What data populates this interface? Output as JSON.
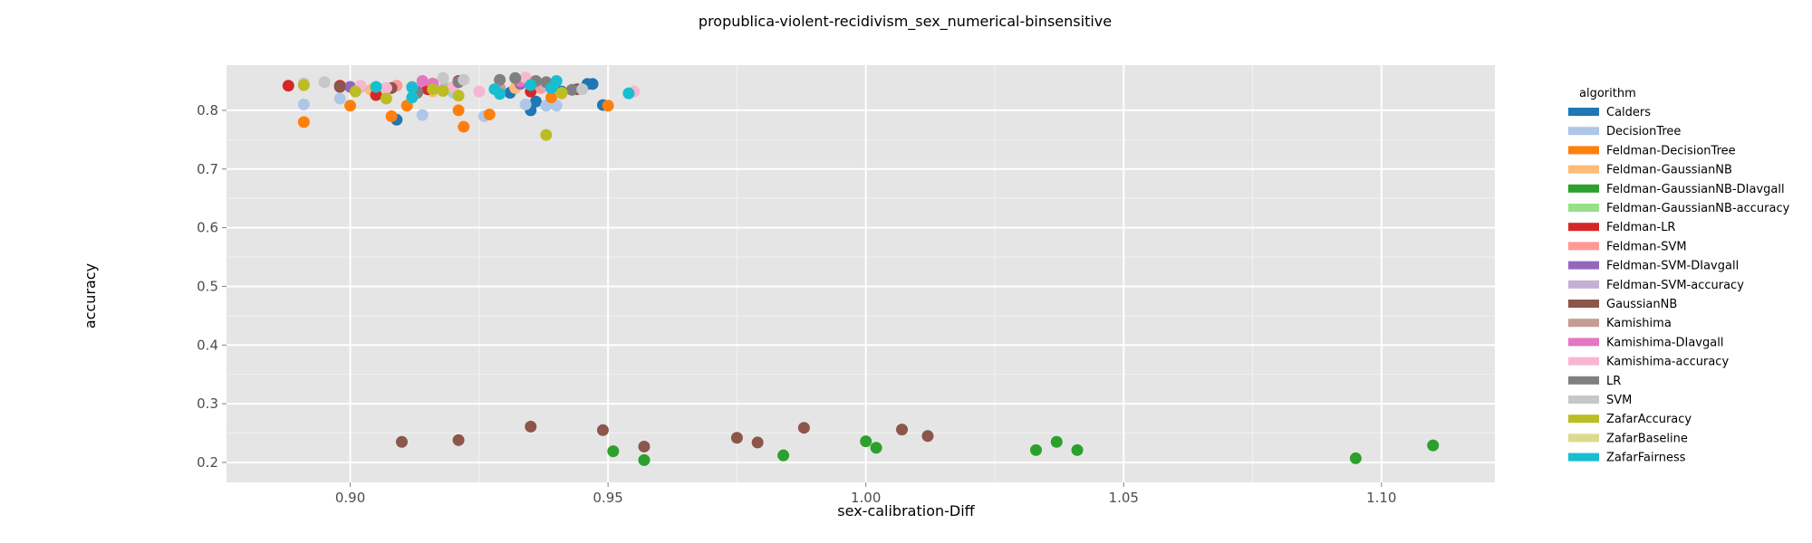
{
  "chart_data": {
    "type": "scatter",
    "title": "propublica-violent-recidivism_sex_numerical-binsensitive",
    "xlabel": "sex-calibration-Diff",
    "ylabel": "accuracy",
    "xlim": [
      0.876,
      1.122
    ],
    "ylim": [
      0.166,
      0.877
    ],
    "x_ticks": [
      0.9,
      0.95,
      1.0,
      1.05,
      1.1
    ],
    "x_tick_labels": [
      "0.90",
      "0.95",
      "1.00",
      "1.05",
      "1.10"
    ],
    "y_ticks": [
      0.2,
      0.3,
      0.4,
      0.5,
      0.6,
      0.7,
      0.8
    ],
    "y_tick_labels": [
      "0.2",
      "0.3",
      "0.4",
      "0.5",
      "0.6",
      "0.7",
      "0.8"
    ],
    "grid": true,
    "legend_title": "algorithm",
    "legend_position": "right",
    "series": [
      {
        "name": "Calders",
        "color": "#1f77b4",
        "points": [
          [
            0.909,
            0.784
          ],
          [
            0.931,
            0.83
          ],
          [
            0.935,
            0.8
          ],
          [
            0.936,
            0.815
          ],
          [
            0.946,
            0.845
          ],
          [
            0.947,
            0.845
          ],
          [
            0.949,
            0.809
          ],
          [
            0.941,
            0.832
          ]
        ]
      },
      {
        "name": "DecisionTree",
        "color": "#aec7e8",
        "points": [
          [
            0.891,
            0.81
          ],
          [
            0.898,
            0.82
          ],
          [
            0.914,
            0.792
          ],
          [
            0.926,
            0.79
          ],
          [
            0.934,
            0.81
          ],
          [
            0.938,
            0.808
          ],
          [
            0.94,
            0.808
          ],
          [
            0.92,
            0.83
          ]
        ]
      },
      {
        "name": "Feldman-DecisionTree",
        "color": "#ff7f0e",
        "points": [
          [
            0.891,
            0.78
          ],
          [
            0.9,
            0.808
          ],
          [
            0.908,
            0.79
          ],
          [
            0.911,
            0.808
          ],
          [
            0.921,
            0.8
          ],
          [
            0.922,
            0.772
          ],
          [
            0.927,
            0.793
          ],
          [
            0.939,
            0.822
          ],
          [
            0.95,
            0.808
          ]
        ]
      },
      {
        "name": "Feldman-GaussianNB",
        "color": "#ffbb78",
        "points": [
          [
            0.904,
            0.835
          ],
          [
            0.916,
            0.832
          ],
          [
            0.941,
            0.828
          ],
          [
            0.932,
            0.838
          ]
        ]
      },
      {
        "name": "Feldman-GaussianNB-DIavgall",
        "color": "#2ca02c",
        "points": [
          [
            0.951,
            0.219
          ],
          [
            0.957,
            0.204
          ],
          [
            0.984,
            0.212
          ],
          [
            1.0,
            0.236
          ],
          [
            1.002,
            0.225
          ],
          [
            1.033,
            0.221
          ],
          [
            1.037,
            0.235
          ],
          [
            1.041,
            0.221
          ],
          [
            1.095,
            0.207
          ],
          [
            1.11,
            0.229
          ]
        ]
      },
      {
        "name": "Feldman-GaussianNB-accuracy",
        "color": "#98df8a",
        "points": [
          [
            0.906,
            0.836
          ],
          [
            0.919,
            0.838
          ],
          [
            0.939,
            0.84
          ]
        ]
      },
      {
        "name": "Feldman-LR",
        "color": "#d62728",
        "points": [
          [
            0.888,
            0.842
          ],
          [
            0.898,
            0.842
          ],
          [
            0.905,
            0.826
          ],
          [
            0.915,
            0.836
          ],
          [
            0.921,
            0.85
          ],
          [
            0.935,
            0.832
          ]
        ]
      },
      {
        "name": "Feldman-SVM",
        "color": "#ff9896",
        "points": [
          [
            0.909,
            0.842
          ],
          [
            0.916,
            0.846
          ],
          [
            0.937,
            0.838
          ]
        ]
      },
      {
        "name": "Feldman-SVM-DIavgall",
        "color": "#9467bd",
        "points": [
          [
            0.9,
            0.84
          ],
          [
            0.913,
            0.832
          ],
          [
            0.933,
            0.845
          ]
        ]
      },
      {
        "name": "Feldman-SVM-accuracy",
        "color": "#c5b0d5",
        "points": [
          [
            0.902,
            0.84
          ],
          [
            0.918,
            0.836
          ],
          [
            0.938,
            0.842
          ]
        ]
      },
      {
        "name": "GaussianNB",
        "color": "#8c564b",
        "points": [
          [
            0.91,
            0.235
          ],
          [
            0.921,
            0.238
          ],
          [
            0.935,
            0.261
          ],
          [
            0.949,
            0.255
          ],
          [
            0.957,
            0.227
          ],
          [
            0.975,
            0.242
          ],
          [
            0.979,
            0.234
          ],
          [
            0.988,
            0.259
          ],
          [
            1.007,
            0.256
          ],
          [
            1.012,
            0.245
          ],
          [
            0.898,
            0.84
          ],
          [
            0.908,
            0.838
          ],
          [
            0.944,
            0.836
          ]
        ]
      },
      {
        "name": "Kamishima",
        "color": "#c49c94",
        "points": [
          [
            0.912,
            0.84
          ],
          [
            0.929,
            0.838
          ]
        ]
      },
      {
        "name": "Kamishima-DIavgall",
        "color": "#e377c2",
        "points": [
          [
            0.914,
            0.85
          ],
          [
            0.916,
            0.845
          ],
          [
            0.933,
            0.85
          ]
        ]
      },
      {
        "name": "Kamishima-accuracy",
        "color": "#f7b6d2",
        "points": [
          [
            0.902,
            0.842
          ],
          [
            0.907,
            0.838
          ],
          [
            0.92,
            0.84
          ],
          [
            0.925,
            0.832
          ],
          [
            0.934,
            0.856
          ],
          [
            0.955,
            0.832
          ]
        ]
      },
      {
        "name": "LR",
        "color": "#7f7f7f",
        "points": [
          [
            0.929,
            0.852
          ],
          [
            0.932,
            0.855
          ],
          [
            0.936,
            0.85
          ],
          [
            0.938,
            0.848
          ],
          [
            0.943,
            0.835
          ],
          [
            0.921,
            0.848
          ],
          [
            0.913,
            0.83
          ]
        ]
      },
      {
        "name": "SVM",
        "color": "#c7c7c7",
        "points": [
          [
            0.891,
            0.846
          ],
          [
            0.895,
            0.848
          ],
          [
            0.918,
            0.855
          ],
          [
            0.922,
            0.852
          ],
          [
            0.945,
            0.836
          ]
        ]
      },
      {
        "name": "ZafarAccuracy",
        "color": "#bcbd22",
        "points": [
          [
            0.891,
            0.843
          ],
          [
            0.901,
            0.832
          ],
          [
            0.907,
            0.82
          ],
          [
            0.916,
            0.836
          ],
          [
            0.918,
            0.833
          ],
          [
            0.921,
            0.825
          ],
          [
            0.938,
            0.758
          ],
          [
            0.941,
            0.83
          ]
        ]
      },
      {
        "name": "ZafarBaseline",
        "color": "#dbdb8d",
        "points": [
          [
            0.912,
            0.822
          ],
          [
            0.928,
            0.836
          ]
        ]
      },
      {
        "name": "ZafarFairness",
        "color": "#17becf",
        "points": [
          [
            0.905,
            0.84
          ],
          [
            0.912,
            0.839
          ],
          [
            0.912,
            0.822
          ],
          [
            0.928,
            0.836
          ],
          [
            0.929,
            0.828
          ],
          [
            0.935,
            0.843
          ],
          [
            0.939,
            0.838
          ],
          [
            0.94,
            0.85
          ],
          [
            0.954,
            0.829
          ]
        ]
      }
    ]
  }
}
